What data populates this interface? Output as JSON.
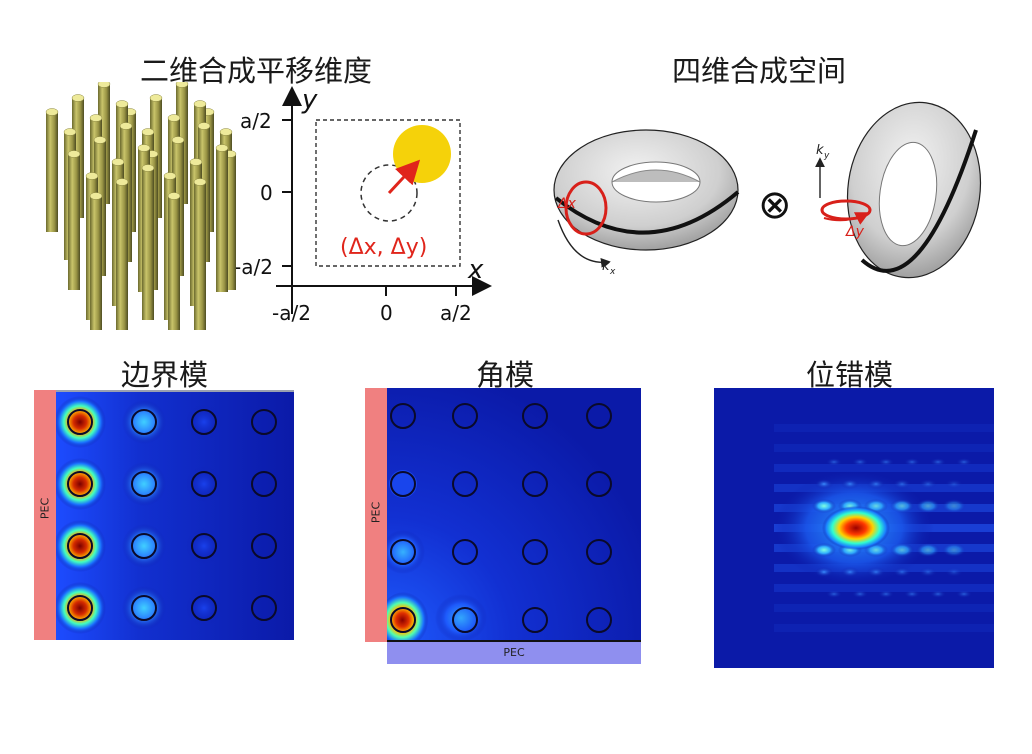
{
  "titles": {
    "synthetic_2d": "二维合成平移维度",
    "synthetic_4d": "四维合成空间",
    "edge_mode": "边界模",
    "corner_mode": "角模",
    "dislocation_mode": "位错模"
  },
  "axes": {
    "x_label": "x",
    "y_label": "y",
    "x_ticks": [
      "-a/2",
      "0",
      "a/2"
    ],
    "y_ticks": [
      "a/2",
      "0",
      "-a/2"
    ],
    "shift_label": "(Δx, Δy)"
  },
  "torus": {
    "label_dx": "Δx",
    "label_kx": "k",
    "label_kx_sub": "x",
    "label_dy": "Δy",
    "label_ky": "k",
    "label_ky_sub": "y",
    "operator": "⊗"
  },
  "pec": {
    "edge_left": "PEC",
    "corner_left": "PEC",
    "corner_bottom": "PEC"
  },
  "colors": {
    "rod": "#e6e08a",
    "shifted_circle": "#f5d20a",
    "arrow": "#e0251b",
    "pec_red": "#f08080",
    "pec_blue": "#8f8fef",
    "field_bg": "#0b1aa8"
  }
}
